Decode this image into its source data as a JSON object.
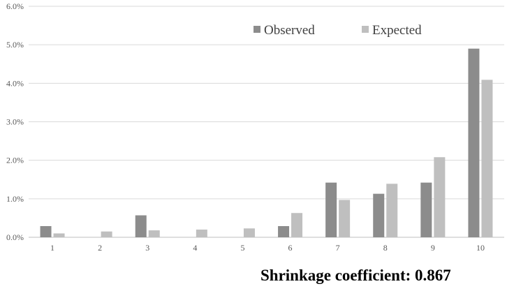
{
  "chart_data": {
    "type": "bar",
    "categories": [
      "1",
      "2",
      "3",
      "4",
      "5",
      "6",
      "7",
      "8",
      "9",
      "10"
    ],
    "series": [
      {
        "name": "Observed",
        "values": [
          0.29,
          0.0,
          0.57,
          0.0,
          0.0,
          0.29,
          1.42,
          1.13,
          1.42,
          4.9
        ],
        "color": "#8c8c8c"
      },
      {
        "name": "Expected",
        "values": [
          0.1,
          0.15,
          0.18,
          0.2,
          0.23,
          0.63,
          0.97,
          1.39,
          2.08,
          4.09
        ],
        "color": "#bfbfbf"
      }
    ],
    "ylim": [
      0,
      6
    ],
    "yticks": [
      0,
      1,
      2,
      3,
      4,
      5,
      6
    ],
    "ytick_labels": [
      "0.0%",
      "1.0%",
      "2.0%",
      "3.0%",
      "4.0%",
      "5.0%",
      "6.0%"
    ],
    "grid": true,
    "legend_position": "top-right",
    "xlabel": "",
    "ylabel": "",
    "annotation": "Shrinkage coefficient: 0.867"
  }
}
